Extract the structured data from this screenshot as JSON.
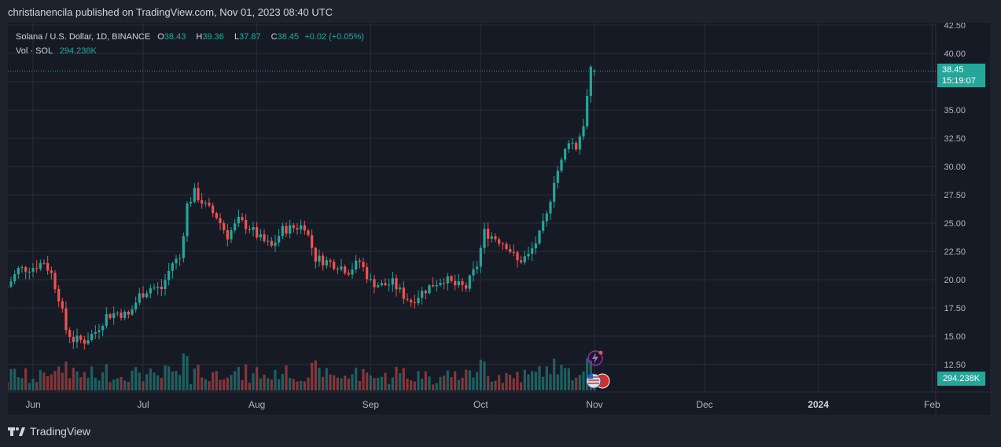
{
  "header": {
    "published_line": "christianencila published on TradingView.com, Nov 01, 2023 08:40 UTC"
  },
  "legend": {
    "symbol": "Solana / U.S. Dollar, 1D, BINANCE",
    "open_label": "O",
    "open": "38.43",
    "high_label": "H",
    "high": "39.36",
    "low_label": "L",
    "low": "37.87",
    "close_label": "C",
    "close": "38.45",
    "change": "+0.02 (+0.05%)",
    "vol_label": "Vol · SOL",
    "vol_value": "294.238K"
  },
  "price_tag": {
    "price": "38.45",
    "countdown": "15:19:07"
  },
  "volume_tag": "294.238K",
  "footer": {
    "brand": "TradingView"
  },
  "colors": {
    "up": "#26a69a",
    "down": "#ef5350",
    "background": "#161a25",
    "grid": "#2a2e39",
    "axis_text": "#b2b5be"
  },
  "chart_data": {
    "type": "candlestick",
    "symbol": "SOL/USD",
    "interval": "1D",
    "exchange": "BINANCE",
    "x_ticks": [
      "Jun",
      "Jul",
      "Aug",
      "Sep",
      "Oct",
      "Nov",
      "Dec",
      "2024",
      "Feb"
    ],
    "y_ticks": [
      "12.50",
      "15.00",
      "17.50",
      "20.00",
      "22.50",
      "25.00",
      "27.50",
      "30.00",
      "32.50",
      "35.00",
      "37.50",
      "40.00",
      "42.50"
    ],
    "ylim": [
      12.5,
      42.5
    ],
    "last_price": 38.45,
    "grid": true,
    "close_series": [
      {
        "date": "2023-05-25",
        "close": 19.4
      },
      {
        "date": "2023-05-28",
        "close": 20.9
      },
      {
        "date": "2023-06-01",
        "close": 21.1
      },
      {
        "date": "2023-06-04",
        "close": 21.6
      },
      {
        "date": "2023-06-06",
        "close": 20.5
      },
      {
        "date": "2023-06-08",
        "close": 18.5
      },
      {
        "date": "2023-06-10",
        "close": 15.6
      },
      {
        "date": "2023-06-12",
        "close": 14.7
      },
      {
        "date": "2023-06-15",
        "close": 14.6
      },
      {
        "date": "2023-06-18",
        "close": 15.4
      },
      {
        "date": "2023-06-21",
        "close": 16.8
      },
      {
        "date": "2023-06-24",
        "close": 17.1
      },
      {
        "date": "2023-06-27",
        "close": 16.8
      },
      {
        "date": "2023-06-30",
        "close": 18.6
      },
      {
        "date": "2023-07-03",
        "close": 19.3
      },
      {
        "date": "2023-07-06",
        "close": 19.2
      },
      {
        "date": "2023-07-09",
        "close": 21.5
      },
      {
        "date": "2023-07-11",
        "close": 21.9
      },
      {
        "date": "2023-07-13",
        "close": 26.6
      },
      {
        "date": "2023-07-15",
        "close": 27.7
      },
      {
        "date": "2023-07-18",
        "close": 26.5
      },
      {
        "date": "2023-07-21",
        "close": 25.6
      },
      {
        "date": "2023-07-24",
        "close": 23.9
      },
      {
        "date": "2023-07-27",
        "close": 25.2
      },
      {
        "date": "2023-07-30",
        "close": 24.6
      },
      {
        "date": "2023-08-02",
        "close": 23.6
      },
      {
        "date": "2023-08-05",
        "close": 22.9
      },
      {
        "date": "2023-08-08",
        "close": 24.4
      },
      {
        "date": "2023-08-11",
        "close": 24.6
      },
      {
        "date": "2023-08-14",
        "close": 24.8
      },
      {
        "date": "2023-08-17",
        "close": 21.9
      },
      {
        "date": "2023-08-20",
        "close": 21.6
      },
      {
        "date": "2023-08-23",
        "close": 21.3
      },
      {
        "date": "2023-08-26",
        "close": 20.8
      },
      {
        "date": "2023-08-29",
        "close": 21.6
      },
      {
        "date": "2023-09-01",
        "close": 19.8
      },
      {
        "date": "2023-09-04",
        "close": 19.5
      },
      {
        "date": "2023-09-07",
        "close": 19.7
      },
      {
        "date": "2023-09-10",
        "close": 18.6
      },
      {
        "date": "2023-09-12",
        "close": 18.1
      },
      {
        "date": "2023-09-15",
        "close": 18.9
      },
      {
        "date": "2023-09-18",
        "close": 19.6
      },
      {
        "date": "2023-09-21",
        "close": 20.1
      },
      {
        "date": "2023-09-24",
        "close": 19.5
      },
      {
        "date": "2023-09-27",
        "close": 19.3
      },
      {
        "date": "2023-09-30",
        "close": 21.3
      },
      {
        "date": "2023-10-02",
        "close": 24.2
      },
      {
        "date": "2023-10-05",
        "close": 23.7
      },
      {
        "date": "2023-10-08",
        "close": 23.1
      },
      {
        "date": "2023-10-11",
        "close": 21.6
      },
      {
        "date": "2023-10-14",
        "close": 22.1
      },
      {
        "date": "2023-10-17",
        "close": 23.9
      },
      {
        "date": "2023-10-19",
        "close": 25.6
      },
      {
        "date": "2023-10-21",
        "close": 28.9
      },
      {
        "date": "2023-10-23",
        "close": 30.4
      },
      {
        "date": "2023-10-25",
        "close": 32.4
      },
      {
        "date": "2023-10-27",
        "close": 31.7
      },
      {
        "date": "2023-10-29",
        "close": 33.8
      },
      {
        "date": "2023-10-31",
        "close": 38.4
      },
      {
        "date": "2023-11-01",
        "close": 38.45
      }
    ],
    "volume_last": "294.238K"
  }
}
